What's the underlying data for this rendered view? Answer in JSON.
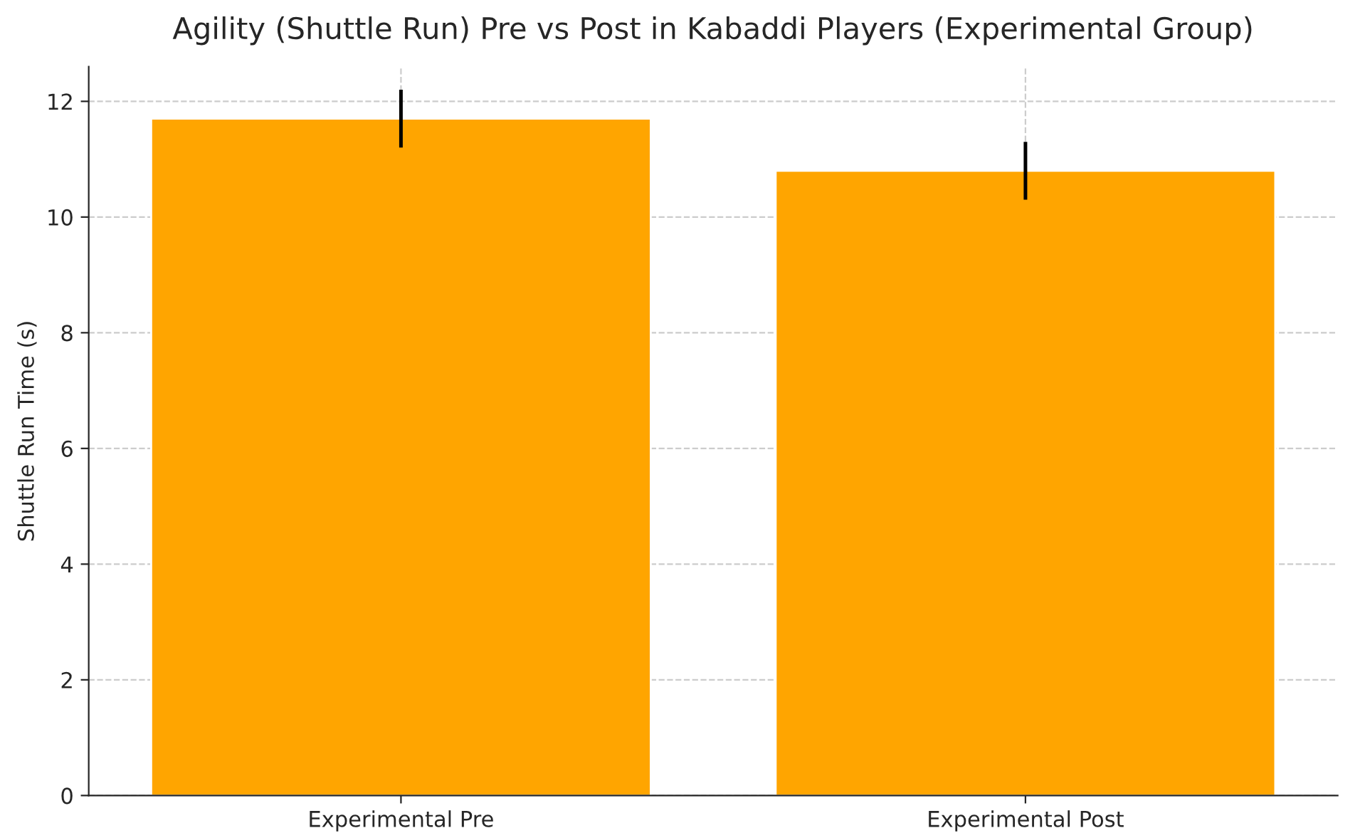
{
  "chart_data": {
    "type": "bar",
    "title": "Agility (Shuttle Run) Pre vs Post in Kabaddi Players (Experimental Group)",
    "ylabel": "Shuttle Run Time (s)",
    "categories": [
      "Experimental Pre",
      "Experimental Post"
    ],
    "values": [
      11.7,
      10.8
    ],
    "errors": [
      0.5,
      0.5
    ],
    "color": "#ffa500",
    "ylim": [
      0,
      12.6
    ],
    "yticks": [
      0,
      2,
      4,
      6,
      8,
      10,
      12
    ],
    "grid": true
  }
}
